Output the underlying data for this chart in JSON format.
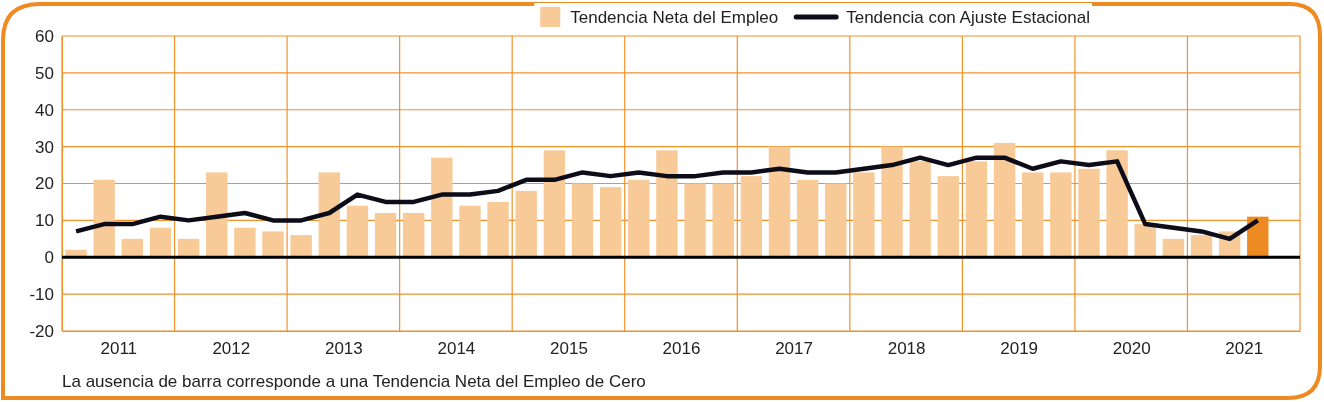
{
  "chart_data": {
    "type": "bar",
    "x": [
      2011.125,
      2011.375,
      2011.625,
      2011.875,
      2012.125,
      2012.375,
      2012.625,
      2012.875,
      2013.125,
      2013.375,
      2013.625,
      2013.875,
      2014.125,
      2014.375,
      2014.625,
      2014.875,
      2015.125,
      2015.375,
      2015.625,
      2015.875,
      2016.125,
      2016.375,
      2016.625,
      2016.875,
      2017.125,
      2017.375,
      2017.625,
      2017.875,
      2018.125,
      2018.375,
      2018.625,
      2018.875,
      2019.125,
      2019.375,
      2019.625,
      2019.875,
      2020.125,
      2020.375,
      2020.625,
      2020.875,
      2021.125,
      2021.375,
      2021.625
    ],
    "series": [
      {
        "name": "Tendencia Neta del Empleo",
        "color": "#f7ca98",
        "colors": [
          "#f7ca98",
          "#f7ca98",
          "#f7ca98",
          "#f7ca98",
          "#f7ca98",
          "#f7ca98",
          "#f7ca98",
          "#f7ca98",
          "#f7ca98",
          "#f7ca98",
          "#f7ca98",
          "#f7ca98",
          "#f7ca98",
          "#f7ca98",
          "#f7ca98",
          "#f7ca98",
          "#f7ca98",
          "#f7ca98",
          "#f7ca98",
          "#f7ca98",
          "#f7ca98",
          "#f7ca98",
          "#f7ca98",
          "#f7ca98",
          "#f7ca98",
          "#f7ca98",
          "#f7ca98",
          "#f7ca98",
          "#f7ca98",
          "#f7ca98",
          "#f7ca98",
          "#f7ca98",
          "#f7ca98",
          "#f7ca98",
          "#f7ca98",
          "#f7ca98",
          "#f7ca98",
          "#f7ca98",
          "#f7ca98",
          "#f7ca98",
          "#f7ca98",
          "#f7ca98",
          "#ee8a22"
        ],
        "values": [
          2,
          21,
          5,
          8,
          5,
          23,
          8,
          7,
          6,
          23,
          14,
          12,
          12,
          27,
          14,
          15,
          18,
          29,
          20,
          19,
          21,
          29,
          20,
          20,
          22,
          30,
          21,
          20,
          23,
          30,
          26,
          22,
          26,
          31,
          23,
          23,
          24,
          29,
          9,
          5,
          6,
          7,
          11
        ]
      },
      {
        "name": "Tendencia con Ajuste Estacional",
        "type": "line",
        "color": "#0d0d1a",
        "values": [
          7,
          9,
          9,
          11,
          10,
          11,
          12,
          10,
          10,
          12,
          17,
          15,
          15,
          17,
          17,
          18,
          21,
          21,
          23,
          22,
          23,
          22,
          22,
          23,
          23,
          24,
          23,
          23,
          24,
          25,
          27,
          25,
          27,
          27,
          24,
          26,
          25,
          26,
          9,
          8,
          7,
          5,
          10
        ]
      }
    ],
    "xlim": [
      2011,
      2022
    ],
    "xticks": [
      {
        "value": 2011,
        "label": null
      },
      {
        "value": 2011.5,
        "label": "2011"
      },
      {
        "value": 2012,
        "label": null
      },
      {
        "value": 2012.5,
        "label": "2012"
      },
      {
        "value": 2013,
        "label": null
      },
      {
        "value": 2013.5,
        "label": "2013"
      },
      {
        "value": 2014,
        "label": null
      },
      {
        "value": 2014.5,
        "label": "2014"
      },
      {
        "value": 2015,
        "label": null
      },
      {
        "value": 2015.5,
        "label": "2015"
      },
      {
        "value": 2016,
        "label": null
      },
      {
        "value": 2016.5,
        "label": "2016"
      },
      {
        "value": 2017,
        "label": null
      },
      {
        "value": 2017.5,
        "label": "2017"
      },
      {
        "value": 2018,
        "label": null
      },
      {
        "value": 2018.5,
        "label": "2018"
      },
      {
        "value": 2019,
        "label": null
      },
      {
        "value": 2019.5,
        "label": "2019"
      },
      {
        "value": 2020,
        "label": null
      },
      {
        "value": 2020.5,
        "label": "2020"
      },
      {
        "value": 2021,
        "label": null
      },
      {
        "value": 2021.5,
        "label": "2021"
      },
      {
        "value": 2022,
        "label": null
      }
    ],
    "ylim": [
      -20,
      60
    ],
    "yticks": [
      -20,
      -10,
      0,
      10,
      20,
      30,
      40,
      50,
      60
    ],
    "grid": true,
    "legend": "top right",
    "marker": "none",
    "ref_lines": [
      {
        "axis": "y",
        "value": 0,
        "color": "#000000"
      }
    ],
    "annotations": [
      "La ausencia de barra corresponde a una Tendencia Neta del Empleo de Cero"
    ]
  }
}
